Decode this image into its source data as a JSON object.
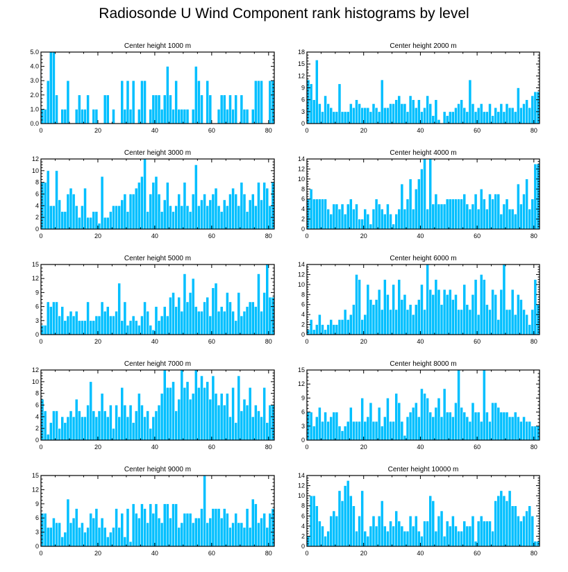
{
  "title": "Radiosonde U Wind Component rank histograms by level",
  "colors": {
    "bar": "#00bfff",
    "bar_edge": "#ffffff",
    "axis": "#000000"
  },
  "chart_data": [
    {
      "type": "bar",
      "title": "Center height 1000 m",
      "xlim": [
        0,
        82
      ],
      "ylim": [
        0,
        5
      ],
      "xticks": [
        0,
        20,
        40,
        60,
        80
      ],
      "yticks": [
        0,
        1,
        2,
        3,
        4,
        5
      ],
      "ytick_labels": [
        "0.0",
        "1.0",
        "2.0",
        "3.0",
        "4.0",
        "5.0"
      ],
      "values": [
        1,
        1,
        3,
        5,
        5,
        2,
        0,
        1,
        1,
        3,
        0,
        0,
        1,
        2,
        1,
        1,
        2,
        0,
        1,
        1,
        0,
        0,
        2,
        2,
        0,
        1,
        0,
        0,
        3,
        1,
        3,
        1,
        3,
        0,
        1,
        3,
        3,
        0,
        1,
        2,
        2,
        2,
        1,
        2,
        4,
        2,
        1,
        3,
        1,
        1,
        1,
        1,
        0,
        1,
        4,
        3,
        2,
        0,
        3,
        2,
        0,
        0,
        1,
        2,
        2,
        1,
        2,
        1,
        2,
        0,
        2,
        1,
        1,
        0,
        1,
        3,
        3,
        3,
        0,
        0,
        3,
        3
      ]
    },
    {
      "type": "bar",
      "title": "Center height 2000 m",
      "xlim": [
        0,
        82
      ],
      "ylim": [
        0,
        18
      ],
      "xticks": [
        0,
        20,
        40,
        60,
        80
      ],
      "yticks": [
        0,
        3,
        6,
        9,
        12,
        15,
        18
      ],
      "ytick_labels": [
        "0",
        "3",
        "6",
        "9",
        "12",
        "15",
        "18"
      ],
      "values": [
        11,
        10,
        6,
        16,
        5,
        3,
        7,
        5,
        4,
        3,
        3,
        10,
        3,
        3,
        3,
        5,
        4,
        6,
        5,
        4,
        4,
        4,
        3,
        5,
        4,
        3,
        11,
        4,
        4,
        5,
        5,
        6,
        7,
        5,
        5,
        3,
        7,
        6,
        4,
        6,
        3,
        4,
        7,
        5,
        2,
        6,
        1,
        0,
        3,
        2,
        3,
        3,
        4,
        5,
        6,
        4,
        3,
        11,
        5,
        3,
        4,
        5,
        3,
        3,
        5,
        2,
        4,
        3,
        5,
        3,
        5,
        4,
        4,
        3,
        9,
        4,
        5,
        6,
        4,
        7,
        8,
        8
      ]
    },
    {
      "type": "bar",
      "title": "Center height 3000 m",
      "xlim": [
        0,
        82
      ],
      "ylim": [
        0,
        12
      ],
      "xticks": [
        0,
        20,
        40,
        60,
        80
      ],
      "yticks": [
        0,
        2,
        4,
        6,
        8,
        10,
        12
      ],
      "ytick_labels": [
        "0",
        "2",
        "4",
        "6",
        "8",
        "10",
        "12"
      ],
      "values": [
        8,
        8,
        10,
        4,
        4,
        10,
        5,
        3,
        3,
        6,
        7,
        6,
        4,
        2,
        4,
        7,
        2,
        2,
        3,
        3,
        1,
        9,
        2,
        2,
        3,
        4,
        4,
        4,
        5,
        6,
        3,
        6,
        6,
        7,
        8,
        9,
        12,
        3,
        6,
        8,
        9,
        6,
        3,
        5,
        8,
        4,
        3,
        4,
        6,
        4,
        8,
        4,
        3,
        6,
        11,
        4,
        5,
        6,
        4,
        5,
        6,
        7,
        4,
        3,
        5,
        4,
        6,
        7,
        6,
        4,
        8,
        6,
        3,
        5,
        6,
        4,
        8,
        5,
        8,
        7,
        4,
        8
      ]
    },
    {
      "type": "bar",
      "title": "Center height 4000 m",
      "xlim": [
        0,
        82
      ],
      "ylim": [
        0,
        14
      ],
      "xticks": [
        0,
        20,
        40,
        60,
        80
      ],
      "yticks": [
        0,
        2,
        4,
        6,
        8,
        10,
        12,
        14
      ],
      "ytick_labels": [
        "0",
        "2",
        "4",
        "6",
        "8",
        "10",
        "12",
        "14"
      ],
      "values": [
        6,
        8,
        6,
        6,
        6,
        6,
        6,
        4,
        3,
        5,
        5,
        4,
        5,
        3,
        5,
        6,
        4,
        5,
        2,
        2,
        4,
        3,
        1,
        4,
        6,
        5,
        4,
        3,
        5,
        3,
        1,
        3,
        4,
        9,
        4,
        6,
        10,
        4,
        8,
        10,
        12,
        14,
        4,
        14,
        5,
        7,
        5,
        5,
        5,
        6,
        6,
        6,
        6,
        6,
        6,
        7,
        5,
        4,
        5,
        7,
        4,
        8,
        6,
        4,
        7,
        6,
        7,
        7,
        3,
        5,
        6,
        4,
        4,
        3,
        9,
        5,
        7,
        10,
        4,
        6,
        13,
        13
      ]
    },
    {
      "type": "bar",
      "title": "Center height 5000 m",
      "xlim": [
        0,
        82
      ],
      "ylim": [
        0,
        15
      ],
      "xticks": [
        0,
        20,
        40,
        60,
        80
      ],
      "yticks": [
        0,
        3,
        6,
        9,
        12,
        15
      ],
      "ytick_labels": [
        "0",
        "3",
        "6",
        "9",
        "12",
        "15"
      ],
      "values": [
        2,
        2,
        7,
        6,
        7,
        7,
        4,
        6,
        3,
        4,
        5,
        4,
        5,
        3,
        3,
        3,
        7,
        3,
        3,
        4,
        4,
        7,
        5,
        6,
        4,
        4,
        5,
        11,
        3,
        7,
        2,
        3,
        4,
        3,
        2,
        4,
        7,
        5,
        2,
        1,
        6,
        3,
        4,
        6,
        4,
        8,
        9,
        6,
        8,
        5,
        13,
        7,
        9,
        12,
        6,
        5,
        5,
        7,
        8,
        4,
        10,
        11,
        5,
        6,
        5,
        9,
        7,
        5,
        3,
        9,
        4,
        5,
        6,
        7,
        7,
        6,
        13,
        5,
        9,
        15,
        8,
        8
      ]
    },
    {
      "type": "bar",
      "title": "Center height 6000 m",
      "xlim": [
        0,
        82
      ],
      "ylim": [
        0,
        14
      ],
      "xticks": [
        0,
        20,
        40,
        60,
        80
      ],
      "yticks": [
        0,
        2,
        4,
        6,
        8,
        10,
        12,
        14
      ],
      "ytick_labels": [
        "0",
        "2",
        "4",
        "6",
        "8",
        "10",
        "12",
        "14"
      ],
      "values": [
        1,
        3,
        1,
        2,
        4,
        2,
        1,
        2,
        3,
        2,
        2,
        3,
        3,
        5,
        3,
        4,
        6,
        12,
        11,
        3,
        4,
        10,
        7,
        6,
        7,
        9,
        5,
        11,
        8,
        5,
        10,
        5,
        11,
        7,
        8,
        5,
        6,
        4,
        6,
        7,
        10,
        5,
        14,
        9,
        8,
        11,
        9,
        6,
        9,
        8,
        9,
        7,
        8,
        5,
        5,
        10,
        6,
        5,
        8,
        11,
        4,
        12,
        11,
        6,
        5,
        9,
        8,
        3,
        9,
        14,
        5,
        5,
        9,
        4,
        8,
        7,
        5,
        4,
        2,
        5,
        11,
        6
      ]
    },
    {
      "type": "bar",
      "title": "Center height 7000 m",
      "xlim": [
        0,
        82
      ],
      "ylim": [
        0,
        12
      ],
      "xticks": [
        0,
        20,
        40,
        60,
        80
      ],
      "yticks": [
        0,
        2,
        4,
        6,
        8,
        10,
        12
      ],
      "ytick_labels": [
        "0",
        "2",
        "4",
        "6",
        "8",
        "10",
        "12"
      ],
      "values": [
        7,
        5,
        1,
        3,
        5,
        5,
        2,
        4,
        3,
        4,
        5,
        4,
        7,
        5,
        4,
        4,
        6,
        10,
        5,
        4,
        5,
        8,
        5,
        4,
        6,
        2,
        6,
        4,
        9,
        6,
        4,
        6,
        3,
        5,
        8,
        6,
        4,
        5,
        2,
        4,
        5,
        6,
        8,
        12,
        9,
        9,
        10,
        5,
        7,
        12,
        9,
        10,
        7,
        8,
        12,
        9,
        11,
        9,
        10,
        7,
        11,
        8,
        6,
        8,
        6,
        8,
        4,
        9,
        3,
        11,
        5,
        7,
        6,
        9,
        4,
        6,
        5,
        4,
        9,
        3,
        6,
        6
      ]
    },
    {
      "type": "bar",
      "title": "Center height 8000 m",
      "xlim": [
        0,
        82
      ],
      "ylim": [
        0,
        15
      ],
      "xticks": [
        0,
        20,
        40,
        60,
        80
      ],
      "yticks": [
        0,
        3,
        6,
        9,
        12,
        15
      ],
      "ytick_labels": [
        "0",
        "3",
        "6",
        "9",
        "12",
        "15"
      ],
      "values": [
        6,
        6,
        3,
        5,
        7,
        4,
        6,
        4,
        5,
        6,
        6,
        3,
        2,
        3,
        4,
        7,
        4,
        4,
        4,
        9,
        4,
        5,
        8,
        4,
        4,
        7,
        3,
        5,
        9,
        4,
        4,
        10,
        8,
        4,
        1,
        5,
        6,
        7,
        8,
        5,
        11,
        10,
        9,
        6,
        5,
        7,
        9,
        5,
        11,
        6,
        6,
        5,
        8,
        15,
        7,
        6,
        5,
        4,
        8,
        6,
        6,
        4,
        15,
        6,
        4,
        8,
        8,
        7,
        6,
        6,
        6,
        5,
        5,
        6,
        5,
        4,
        5,
        4,
        4,
        3,
        3,
        3
      ]
    },
    {
      "type": "bar",
      "title": "Center height 9000 m",
      "xlim": [
        0,
        82
      ],
      "ylim": [
        0,
        15
      ],
      "xticks": [
        0,
        20,
        40,
        60,
        80
      ],
      "yticks": [
        0,
        3,
        6,
        9,
        12,
        15
      ],
      "ytick_labels": [
        "0",
        "3",
        "6",
        "9",
        "12",
        "15"
      ],
      "values": [
        7,
        7,
        4,
        4,
        6,
        5,
        5,
        2,
        3,
        10,
        5,
        6,
        8,
        4,
        5,
        3,
        4,
        7,
        6,
        8,
        4,
        6,
        4,
        2,
        3,
        4,
        8,
        4,
        7,
        2,
        8,
        1,
        9,
        7,
        6,
        9,
        8,
        5,
        9,
        7,
        9,
        6,
        5,
        9,
        9,
        6,
        9,
        9,
        4,
        5,
        7,
        7,
        7,
        5,
        6,
        6,
        8,
        15,
        5,
        6,
        8,
        8,
        8,
        6,
        8,
        7,
        4,
        5,
        7,
        5,
        5,
        4,
        8,
        4,
        10,
        9,
        5,
        6,
        7,
        4,
        7,
        8
      ]
    },
    {
      "type": "bar",
      "title": "Center height 10000 m",
      "xlim": [
        0,
        82
      ],
      "ylim": [
        0,
        14
      ],
      "xticks": [
        0,
        20,
        40,
        60,
        80
      ],
      "yticks": [
        0,
        2,
        4,
        6,
        8,
        10,
        12,
        14
      ],
      "ytick_labels": [
        "0",
        "2",
        "4",
        "6",
        "8",
        "10",
        "12",
        "14"
      ],
      "values": [
        2,
        10,
        10,
        8,
        5,
        4,
        2,
        3,
        6,
        7,
        6,
        11,
        9,
        12,
        13,
        10,
        8,
        3,
        6,
        11,
        3,
        2,
        4,
        6,
        4,
        6,
        9,
        4,
        3,
        5,
        4,
        7,
        5,
        4,
        3,
        3,
        6,
        4,
        6,
        3,
        2,
        5,
        5,
        10,
        9,
        3,
        6,
        7,
        2,
        5,
        4,
        6,
        4,
        3,
        3,
        5,
        4,
        4,
        6,
        1,
        5,
        6,
        5,
        5,
        5,
        3,
        9,
        10,
        11,
        10,
        9,
        11,
        8,
        8,
        6,
        5,
        6,
        7,
        8,
        6,
        1,
        1
      ]
    }
  ]
}
